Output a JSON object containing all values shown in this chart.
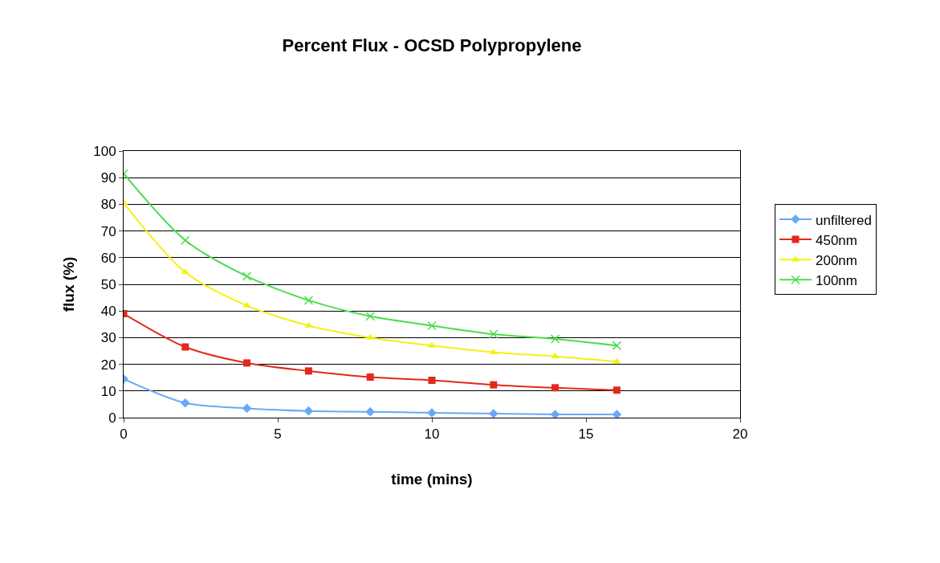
{
  "chart_data": {
    "type": "line",
    "title": "Percent Flux - OCSD Polypropylene",
    "xlabel": "time (mins)",
    "ylabel": "flux (%)",
    "x": [
      0,
      2,
      4,
      6,
      8,
      10,
      12,
      14,
      16
    ],
    "series": [
      {
        "name": "unfiltered",
        "color": "#6aa8f7",
        "marker": "diamond",
        "values": [
          14.5,
          5.5,
          3.5,
          2.5,
          2.2,
          1.8,
          1.5,
          1.2,
          1.2
        ]
      },
      {
        "name": "450nm",
        "color": "#e02a1c",
        "marker": "square",
        "values": [
          39,
          26.5,
          20.5,
          17.5,
          15.2,
          14,
          12.3,
          11.2,
          10.3
        ]
      },
      {
        "name": "200nm",
        "color": "#f5f010",
        "marker": "triangle",
        "values": [
          80.5,
          54.5,
          42,
          34.5,
          30,
          27,
          24.5,
          23,
          21
        ]
      },
      {
        "name": "100nm",
        "color": "#4ddc4d",
        "marker": "cross",
        "values": [
          91.5,
          66.5,
          53,
          44,
          38,
          34.5,
          31.3,
          29.5,
          27
        ]
      }
    ],
    "xlim": [
      0,
      20
    ],
    "xticks": [
      0,
      5,
      10,
      15,
      20
    ],
    "ylim": [
      0,
      100
    ],
    "yticks": [
      0,
      10,
      20,
      30,
      40,
      50,
      60,
      70,
      80,
      90,
      100
    ],
    "grid": "y",
    "legend": "right",
    "line_style": "solid"
  }
}
